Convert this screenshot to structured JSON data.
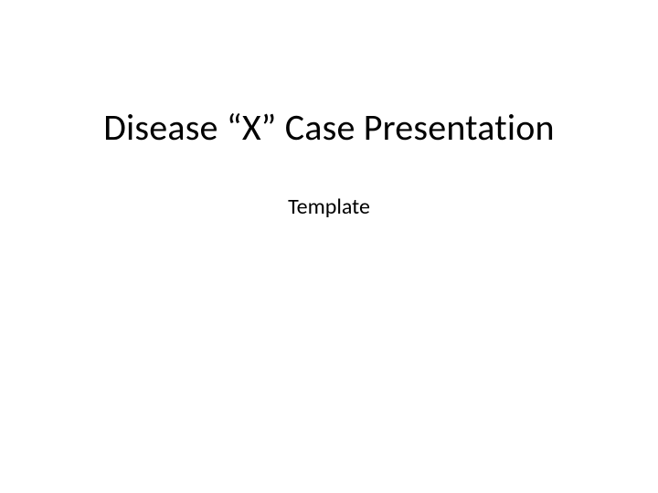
{
  "slide": {
    "title": "Disease  “X” Case Presentation",
    "subtitle": "Template",
    "background_color": "#ffffff",
    "title_color": "#000000",
    "subtitle_color": "#000000",
    "title_fontsize": 40,
    "subtitle_fontsize": 24,
    "font_family": "Calibri"
  }
}
